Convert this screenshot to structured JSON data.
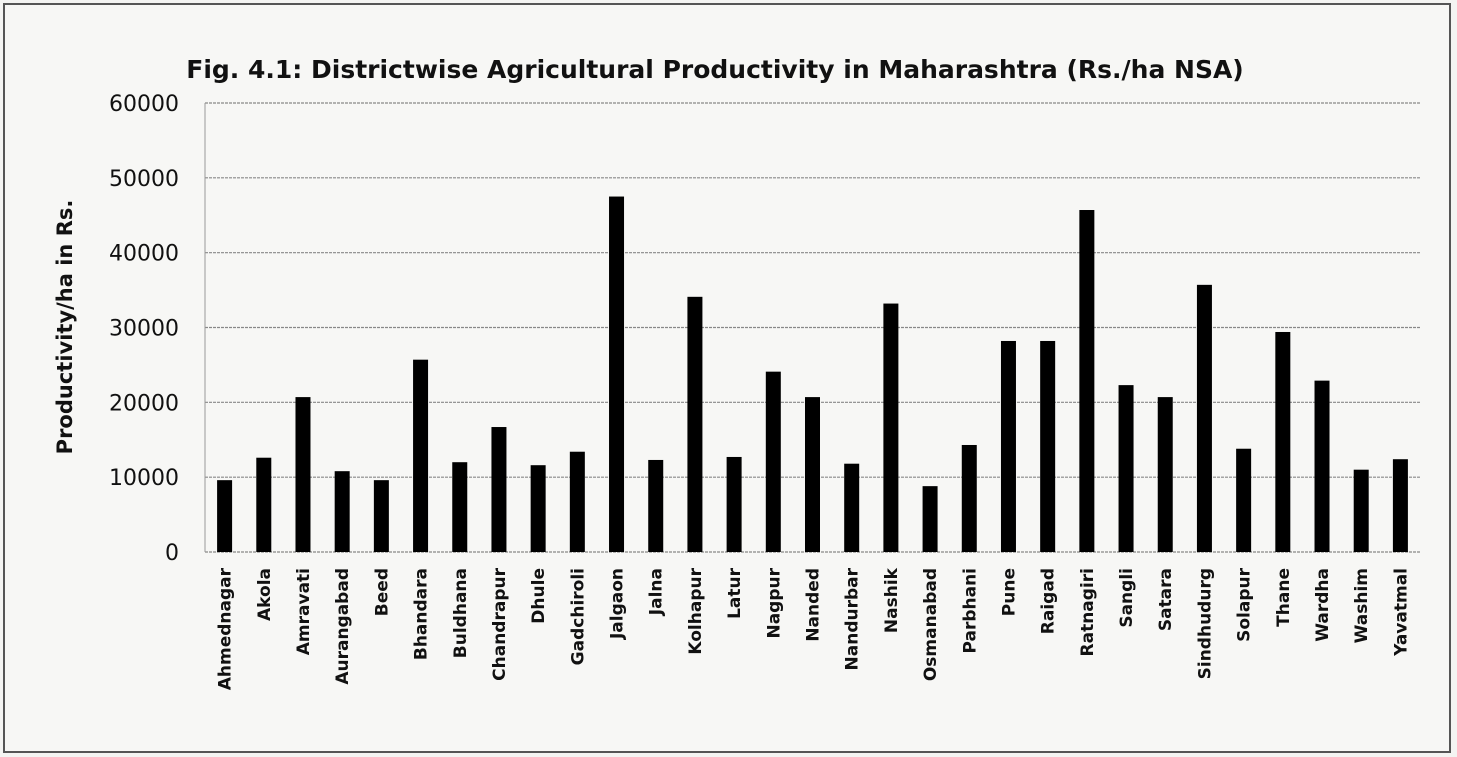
{
  "chart_data": {
    "type": "bar",
    "title": "Fig. 4.1: Districtwise Agricultural Productivity in Maharashtra (Rs./ha NSA)",
    "y_label": "Productivity/ha in Rs.",
    "categories": [
      "Ahmednagar",
      "Akola",
      "Amravati",
      "Aurangabad",
      "Beed",
      "Bhandara",
      "Buldhana",
      "Chandrapur",
      "Dhule",
      "Gadchiroli",
      "Jalgaon",
      "Jalna",
      "Kolhapur",
      "Latur",
      "Nagpur",
      "Nanded",
      "Nandurbar",
      "Nashik",
      "Osmanabad",
      "Parbhani",
      "Pune",
      "Raigad",
      "Ratnagiri",
      "Sangli",
      "Satara",
      "Sindhudurg",
      "Solapur",
      "Thane",
      "Wardha",
      "Washim",
      "Yavatmal"
    ],
    "values": [
      9600,
      12600,
      20700,
      10800,
      9600,
      25700,
      12000,
      16700,
      11600,
      13400,
      47500,
      12300,
      34100,
      12700,
      24100,
      20700,
      11800,
      33200,
      8800,
      14300,
      28200,
      28200,
      45700,
      22300,
      20700,
      35700,
      13800,
      29400,
      22900,
      11000,
      12400
    ],
    "color": "#000000",
    "ylim": [
      0,
      60000
    ],
    "yticks": [
      0,
      10000,
      20000,
      30000,
      40000,
      50000,
      60000
    ],
    "grid": true
  }
}
